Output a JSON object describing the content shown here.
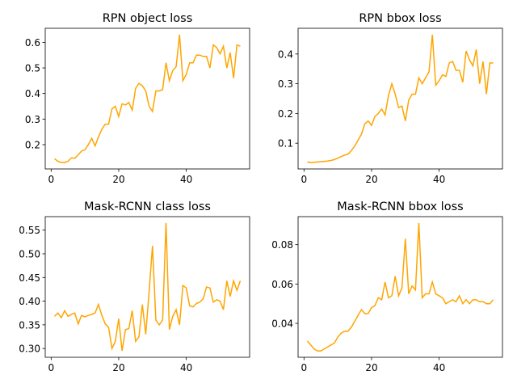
{
  "chart_data": [
    {
      "type": "line",
      "title": "RPN object loss",
      "x": [
        1,
        2,
        3,
        4,
        5,
        6,
        7,
        8,
        9,
        10,
        11,
        12,
        13,
        14,
        15,
        16,
        17,
        18,
        19,
        20,
        21,
        22,
        23,
        24,
        25,
        26,
        27,
        28,
        29,
        30,
        31,
        32,
        33,
        34,
        35,
        36,
        37,
        38,
        39,
        40,
        41,
        42,
        43,
        44,
        45,
        46,
        47,
        48,
        49,
        50,
        51,
        52,
        53,
        54,
        55,
        56
      ],
      "values": [
        0.145,
        0.135,
        0.13,
        0.13,
        0.135,
        0.148,
        0.147,
        0.16,
        0.175,
        0.18,
        0.2,
        0.225,
        0.195,
        0.23,
        0.26,
        0.28,
        0.28,
        0.34,
        0.35,
        0.31,
        0.36,
        0.355,
        0.365,
        0.335,
        0.42,
        0.44,
        0.43,
        0.41,
        0.35,
        0.33,
        0.41,
        0.41,
        0.415,
        0.52,
        0.45,
        0.49,
        0.505,
        0.63,
        0.45,
        0.475,
        0.52,
        0.52,
        0.55,
        0.55,
        0.545,
        0.545,
        0.5,
        0.59,
        0.58,
        0.555,
        0.585,
        0.5,
        0.56,
        0.46,
        0.59,
        0.585
      ],
      "color": "#ffa500",
      "xlim": [
        -1.75,
        58.75
      ],
      "xticks": [
        0,
        20,
        40
      ],
      "ylim": [
        0.105,
        0.655
      ],
      "yticks": [
        0.2,
        0.3,
        0.4,
        0.5,
        0.6
      ]
    },
    {
      "type": "line",
      "title": "RPN bbox loss",
      "x": [
        1,
        2,
        3,
        4,
        5,
        6,
        7,
        8,
        9,
        10,
        11,
        12,
        13,
        14,
        15,
        16,
        17,
        18,
        19,
        20,
        21,
        22,
        23,
        24,
        25,
        26,
        27,
        28,
        29,
        30,
        31,
        32,
        33,
        34,
        35,
        36,
        37,
        38,
        39,
        40,
        41,
        42,
        43,
        44,
        45,
        46,
        47,
        48,
        49,
        50,
        51,
        52,
        53,
        54,
        55,
        56
      ],
      "values": [
        0.037,
        0.035,
        0.036,
        0.037,
        0.038,
        0.039,
        0.04,
        0.042,
        0.045,
        0.05,
        0.055,
        0.06,
        0.063,
        0.075,
        0.09,
        0.11,
        0.13,
        0.165,
        0.175,
        0.16,
        0.19,
        0.2,
        0.215,
        0.195,
        0.26,
        0.3,
        0.265,
        0.22,
        0.225,
        0.175,
        0.245,
        0.265,
        0.265,
        0.32,
        0.3,
        0.32,
        0.34,
        0.465,
        0.295,
        0.31,
        0.33,
        0.325,
        0.37,
        0.375,
        0.345,
        0.345,
        0.305,
        0.41,
        0.38,
        0.36,
        0.415,
        0.3,
        0.375,
        0.265,
        0.37,
        0.37
      ],
      "color": "#ffa500",
      "xlim": [
        -1.75,
        58.75
      ],
      "xticks": [
        0,
        20,
        40
      ],
      "ylim": [
        0.0135,
        0.4865
      ],
      "yticks": [
        0.1,
        0.2,
        0.3,
        0.4
      ]
    },
    {
      "type": "line",
      "title": "Mask-RCNN class loss",
      "x": [
        1,
        2,
        3,
        4,
        5,
        6,
        7,
        8,
        9,
        10,
        11,
        12,
        13,
        14,
        15,
        16,
        17,
        18,
        19,
        20,
        21,
        22,
        23,
        24,
        25,
        26,
        27,
        28,
        29,
        30,
        31,
        32,
        33,
        34,
        35,
        36,
        37,
        38,
        39,
        40,
        41,
        42,
        43,
        44,
        45,
        46,
        47,
        48,
        49,
        50,
        51,
        52,
        53,
        54,
        55,
        56
      ],
      "values": [
        0.368,
        0.375,
        0.365,
        0.38,
        0.368,
        0.372,
        0.375,
        0.352,
        0.37,
        0.367,
        0.37,
        0.372,
        0.375,
        0.393,
        0.37,
        0.352,
        0.345,
        0.3,
        0.315,
        0.363,
        0.295,
        0.34,
        0.342,
        0.38,
        0.315,
        0.325,
        0.393,
        0.33,
        0.42,
        0.517,
        0.36,
        0.35,
        0.36,
        0.565,
        0.34,
        0.368,
        0.382,
        0.35,
        0.433,
        0.428,
        0.39,
        0.388,
        0.395,
        0.398,
        0.405,
        0.43,
        0.428,
        0.398,
        0.403,
        0.4,
        0.382,
        0.443,
        0.41,
        0.443,
        0.423,
        0.443
      ],
      "color": "#ffa500",
      "xlim": [
        -1.75,
        58.75
      ],
      "xticks": [
        0,
        20,
        40
      ],
      "ylim": [
        0.2815,
        0.5785
      ],
      "yticks": [
        {
          "value": 0.3,
          "label": "0.30"
        },
        0.35,
        {
          "value": 0.4,
          "label": "0.40"
        },
        0.45,
        {
          "value": 0.5,
          "label": "0.50"
        },
        0.55
      ]
    },
    {
      "type": "line",
      "title": "Mask-RCNN bbox loss",
      "x": [
        1,
        2,
        3,
        4,
        5,
        6,
        7,
        8,
        9,
        10,
        11,
        12,
        13,
        14,
        15,
        16,
        17,
        18,
        19,
        20,
        21,
        22,
        23,
        24,
        25,
        26,
        27,
        28,
        29,
        30,
        31,
        32,
        33,
        34,
        35,
        36,
        37,
        38,
        39,
        40,
        41,
        42,
        43,
        44,
        45,
        46,
        47,
        48,
        49,
        50,
        51,
        52,
        53,
        54,
        55,
        56
      ],
      "values": [
        0.031,
        0.029,
        0.027,
        0.026,
        0.026,
        0.027,
        0.028,
        0.029,
        0.03,
        0.033,
        0.035,
        0.036,
        0.036,
        0.038,
        0.041,
        0.044,
        0.047,
        0.045,
        0.045,
        0.048,
        0.049,
        0.053,
        0.052,
        0.061,
        0.053,
        0.054,
        0.064,
        0.054,
        0.058,
        0.083,
        0.055,
        0.059,
        0.057,
        0.091,
        0.053,
        0.055,
        0.055,
        0.061,
        0.055,
        0.054,
        0.053,
        0.05,
        0.051,
        0.052,
        0.051,
        0.054,
        0.05,
        0.052,
        0.05,
        0.052,
        0.052,
        0.051,
        0.051,
        0.05,
        0.05,
        0.052
      ],
      "color": "#ffa500",
      "xlim": [
        -1.75,
        58.75
      ],
      "xticks": [
        0,
        20,
        40
      ],
      "ylim": [
        0.02275,
        0.09425
      ],
      "yticks": [
        0.04,
        0.06,
        0.08
      ]
    }
  ]
}
